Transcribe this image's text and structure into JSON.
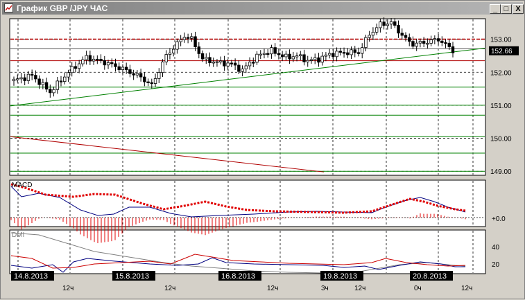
{
  "window": {
    "title": "График GBP /JPY ЧАС",
    "buttons": {
      "minimize": "_",
      "maximize": "□",
      "close": "X"
    }
  },
  "price_panel": {
    "ticks": [
      "153.00",
      "152.00",
      "151.00",
      "150.00",
      "149.00"
    ],
    "current_price": "152.66"
  },
  "macd_panel": {
    "label": "MACD",
    "tick": "+0.0"
  },
  "dmi_panel": {
    "label": "DMI",
    "ticks": [
      "40",
      "20"
    ]
  },
  "time_axis": {
    "labels": [
      {
        "text": "14.8.2013",
        "boxed": true
      },
      {
        "text": "12ч",
        "boxed": false
      },
      {
        "text": "15.8.2013",
        "boxed": true
      },
      {
        "text": "12ч",
        "boxed": false
      },
      {
        "text": "16.8.2013",
        "boxed": true
      },
      {
        "text": "12ч",
        "boxed": false
      },
      {
        "text": "19.8.2013",
        "boxed": true
      },
      {
        "text": "3ч",
        "boxed": false
      },
      {
        "text": "12ч",
        "boxed": false
      },
      {
        "text": "20.8.2013",
        "boxed": true
      },
      {
        "text": "0ч",
        "boxed": false
      },
      {
        "text": "12ч",
        "boxed": false
      }
    ]
  },
  "colors": {
    "resistance": "#b00000",
    "support": "#008000",
    "candle": "#000000",
    "macd_signal": "#e00000",
    "macd_line": "#000080",
    "dmi_plus": "#000080",
    "dmi_minus": "#cc0000",
    "adx": "#808080"
  },
  "chart_data": {
    "type": "candlestick",
    "timeframe": "ЧАС",
    "y_range": [
      148.9,
      153.6
    ],
    "horizontal_levels": {
      "red": [
        153.0,
        152.35
      ],
      "green": [
        151.55,
        151.0,
        150.7,
        150.05,
        149.55,
        149.0
      ],
      "dark": [
        152.71
      ]
    },
    "close_anchors": [
      [
        0,
        151.75
      ],
      [
        5,
        151.9
      ],
      [
        10,
        151.4
      ],
      [
        15,
        152.0
      ],
      [
        20,
        152.45
      ],
      [
        25,
        152.3
      ],
      [
        30,
        152.1
      ],
      [
        35,
        151.85
      ],
      [
        38,
        151.6
      ],
      [
        42,
        152.5
      ],
      [
        47,
        153.1
      ],
      [
        49,
        153.0
      ],
      [
        52,
        152.4
      ],
      [
        56,
        152.3
      ],
      [
        60,
        152.25
      ],
      [
        63,
        152.05
      ],
      [
        65,
        152.3
      ],
      [
        68,
        152.55
      ],
      [
        71,
        152.65
      ],
      [
        75,
        152.45
      ],
      [
        78,
        152.5
      ],
      [
        81,
        152.35
      ],
      [
        84,
        152.4
      ],
      [
        87,
        152.55
      ],
      [
        91,
        152.6
      ],
      [
        95,
        152.6
      ],
      [
        98,
        153.15
      ],
      [
        101,
        153.45
      ],
      [
        104,
        153.5
      ],
      [
        108,
        153.0
      ],
      [
        110,
        152.85
      ],
      [
        113,
        152.9
      ],
      [
        117,
        153.0
      ],
      [
        120,
        152.75
      ],
      [
        121,
        152.66
      ]
    ]
  }
}
